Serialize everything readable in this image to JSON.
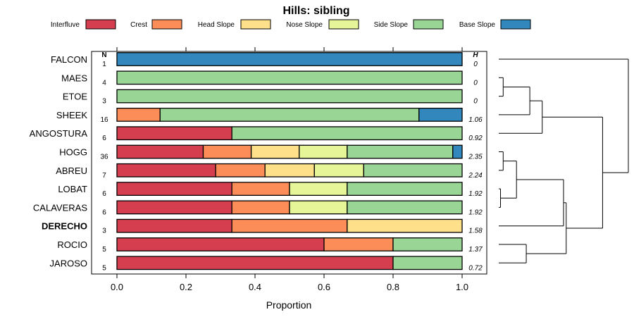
{
  "chart_data": {
    "type": "bar",
    "stacked": true,
    "orientation": "horizontal",
    "title": "Hills: sibling",
    "xlabel": "Proportion",
    "xlim": [
      0,
      1
    ],
    "xticks": [
      "0.0",
      "0.2",
      "0.4",
      "0.6",
      "0.8",
      "1.0"
    ],
    "n_header": "N",
    "h_header": "H",
    "legend_position": "top",
    "highlighted_category": "DERECHO",
    "series": [
      {
        "name": "Interfluve",
        "color": "#D53E4F"
      },
      {
        "name": "Crest",
        "color": "#FC8D59"
      },
      {
        "name": "Head Slope",
        "color": "#FEE08B"
      },
      {
        "name": "Nose Slope",
        "color": "#E6F598"
      },
      {
        "name": "Side Slope",
        "color": "#99D594"
      },
      {
        "name": "Base Slope",
        "color": "#3288BD"
      }
    ],
    "categories": [
      "FALCON",
      "MAES",
      "ETOE",
      "SHEEK",
      "ANGOSTURA",
      "HOGG",
      "ABREU",
      "LOBAT",
      "CALAVERAS",
      "DERECHO",
      "ROCIO",
      "JAROSO"
    ],
    "n": [
      "1",
      "4",
      "3",
      "16",
      "6",
      "36",
      "7",
      "6",
      "6",
      "3",
      "5",
      "5"
    ],
    "h": [
      "0",
      "0",
      "0",
      "1.06",
      "0.92",
      "2.35",
      "2.24",
      "1.92",
      "1.92",
      "1.58",
      "1.37",
      "0.72"
    ],
    "values": [
      [
        0,
        0,
        0,
        0,
        0,
        1
      ],
      [
        0,
        0,
        0,
        0,
        1,
        0
      ],
      [
        0,
        0,
        0,
        0,
        1,
        0
      ],
      [
        0,
        0.125,
        0,
        0,
        0.75,
        0.125
      ],
      [
        0.333,
        0,
        0,
        0,
        0.667,
        0
      ],
      [
        0.25,
        0.139,
        0.139,
        0.139,
        0.306,
        0.027
      ],
      [
        0.286,
        0.143,
        0.143,
        0.143,
        0.285,
        0
      ],
      [
        0.333,
        0.167,
        0,
        0.167,
        0.333,
        0
      ],
      [
        0.333,
        0.167,
        0,
        0.167,
        0.333,
        0
      ],
      [
        0.333,
        0.334,
        0.333,
        0,
        0,
        0
      ],
      [
        0.6,
        0.2,
        0,
        0,
        0.2,
        0
      ],
      [
        0.8,
        0,
        0,
        0,
        0.2,
        0
      ]
    ],
    "dendrogram": {
      "leaf_order": [
        "FALCON",
        "MAES",
        "ETOE",
        "SHEEK",
        "ANGOSTURA",
        "HOGG",
        "ABREU",
        "LOBAT",
        "CALAVERAS",
        "DERECHO",
        "ROCIO",
        "JAROSO"
      ],
      "merges": [
        {
          "a": "MAES",
          "b": "ETOE",
          "height": 0.05
        },
        {
          "a": "HOGG",
          "b": "ABREU",
          "height": 0.05
        },
        {
          "a": "LOBAT",
          "b": "CALAVERAS",
          "height": 0.02
        },
        {
          "a": "m0",
          "b": "SHEEK",
          "height": 0.35
        },
        {
          "a": "m1",
          "b": "m2",
          "height": 0.2
        },
        {
          "a": "m3",
          "b": "ANGOSTURA",
          "height": 0.49
        },
        {
          "a": "ROCIO",
          "b": "JAROSO",
          "height": 0.31
        },
        {
          "a": "m4",
          "b": "DERECHO",
          "height": 0.73
        },
        {
          "a": "m7",
          "b": "m6",
          "height": 0.76
        },
        {
          "a": "m5",
          "b": "m8",
          "height": 1.17
        },
        {
          "a": "FALCON",
          "b": "m9",
          "height": 1.46
        }
      ]
    }
  }
}
